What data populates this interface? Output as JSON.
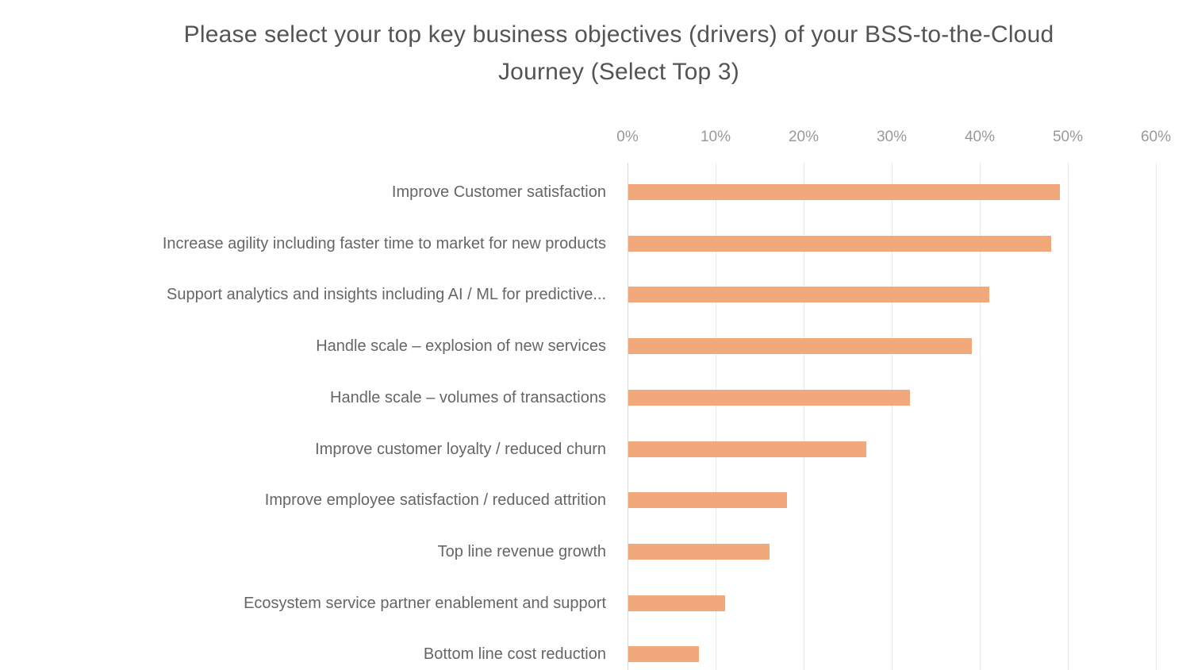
{
  "chart_data": {
    "type": "bar",
    "orientation": "horizontal",
    "title": "Please select your top key business objectives (drivers) of your BSS-to-the-Cloud Journey (Select Top 3)",
    "title_lines": [
      "Please select your top key business objectives (drivers) of your BSS-to-the-Cloud",
      "Journey (Select Top 3)"
    ],
    "categories": [
      "Improve Customer satisfaction",
      "Increase agility including faster time to market for new products",
      "Support analytics and insights including AI / ML for predictive...",
      "Handle scale – explosion of new services",
      "Handle scale – volumes of transactions",
      "Improve customer loyalty / reduced churn",
      "Improve employee satisfaction / reduced attrition",
      "Top line revenue growth",
      "Ecosystem service partner enablement and support",
      "Bottom line cost reduction"
    ],
    "values": [
      49,
      48,
      41,
      39,
      32,
      27,
      18,
      16,
      11,
      8
    ],
    "unit": "%",
    "xlabel": "",
    "ylabel": "",
    "xlim": [
      0,
      60
    ],
    "x_ticks": [
      0,
      10,
      20,
      30,
      40,
      50,
      60
    ],
    "x_tick_labels": [
      "0%",
      "10%",
      "20%",
      "30%",
      "40%",
      "50%",
      "60%"
    ],
    "grid": true,
    "legend": "none",
    "tick_position": "top",
    "colors": {
      "bar": "#F1A87B",
      "title_text": "#545454",
      "category_text": "#666666",
      "tick_text": "#999999",
      "gridline": "#E9E9E9",
      "axis_line": "#D8D8D8",
      "background": "#FFFFFF"
    }
  }
}
